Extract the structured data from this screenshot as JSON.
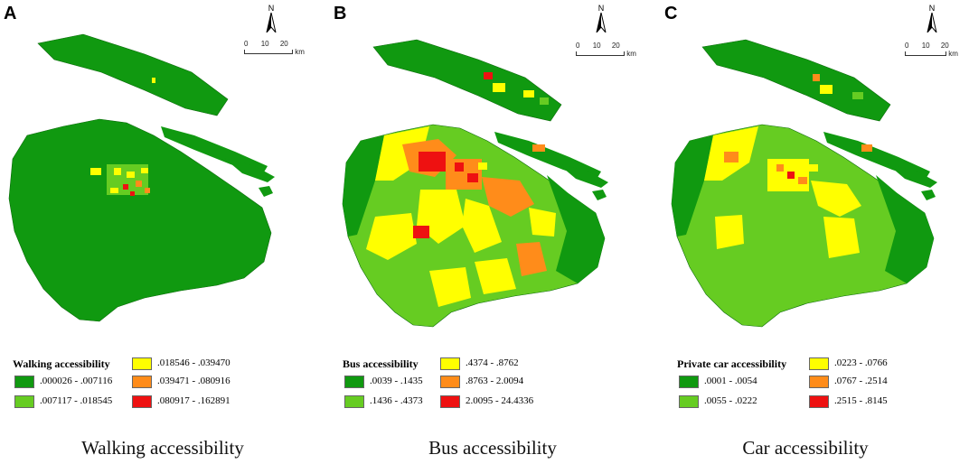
{
  "panels": [
    {
      "letter": "A",
      "caption": "Walking accessibility",
      "legend_title": "Walking accessibility",
      "classes": [
        ".000026 - .007116",
        ".007117 - .018545",
        ".018546 - .039470",
        ".039471 - .080916",
        ".080917 - .162891"
      ],
      "north": "N",
      "scale": [
        "0",
        "10",
        "20",
        "km"
      ]
    },
    {
      "letter": "B",
      "caption": "Bus accessibility",
      "legend_title": "Bus accessibility",
      "classes": [
        ".0039 - .1435",
        ".1436 - .4373",
        ".4374 - .8762",
        ".8763 - 2.0094",
        "2.0095 - 24.4336"
      ],
      "north": "N",
      "scale": [
        "0",
        "10",
        "20",
        "km"
      ]
    },
    {
      "letter": "C",
      "caption": "Car accessibility",
      "legend_title": "Private car accessibility",
      "classes": [
        ".0001 - .0054",
        ".0055 - .0222",
        ".0223 - .0766",
        ".0767 - .2514",
        ".2515 - .8145"
      ],
      "north": "N",
      "scale": [
        "0",
        "10",
        "20",
        "km"
      ]
    }
  ],
  "class_colors": [
    "#109910",
    "#66cc22",
    "#ffff00",
    "#ff8c1a",
    "#ee1111"
  ]
}
